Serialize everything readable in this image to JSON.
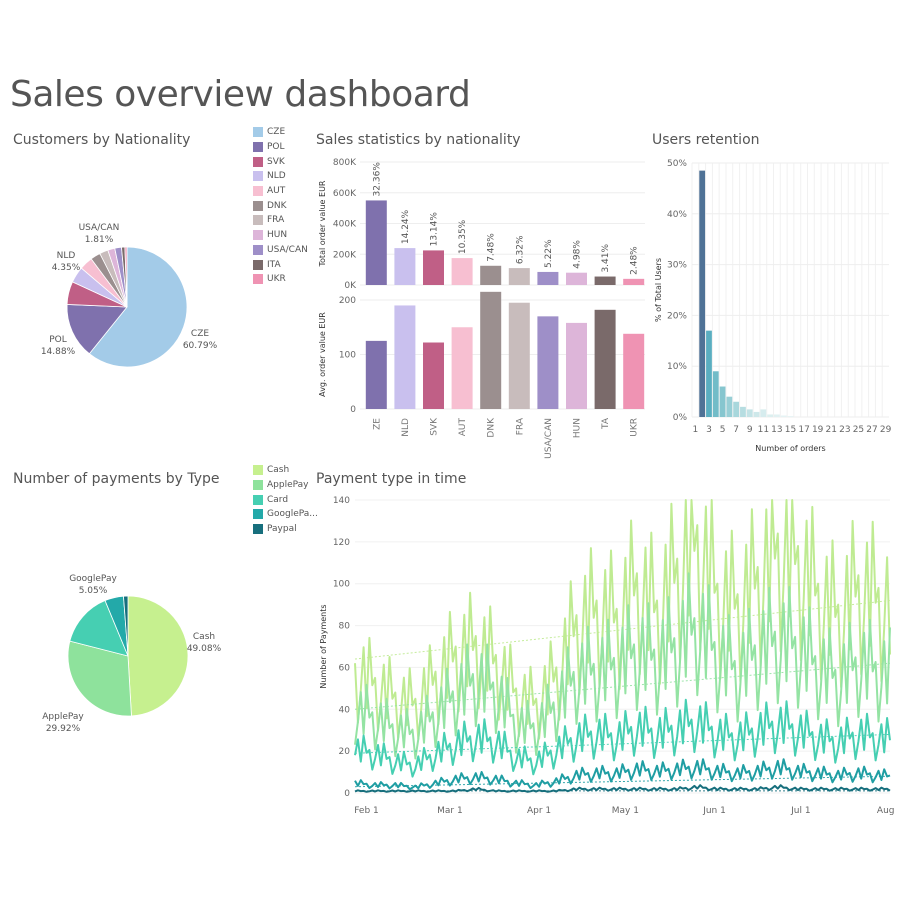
{
  "page": {
    "title": "Sales overview dashboard"
  },
  "chart_data": [
    {
      "id": "nationality_pie",
      "type": "pie",
      "title": "Customers by Nationality",
      "categories": [
        "CZE",
        "POL",
        "SVK",
        "NLD",
        "AUT",
        "DNK",
        "FRA",
        "HUN",
        "USA/CAN",
        "ITA",
        "UKR"
      ],
      "values": [
        60.79,
        14.88,
        6.2,
        4.35,
        3.6,
        2.7,
        2.3,
        1.9,
        1.81,
        0.9,
        0.56
      ],
      "colors": [
        "#a3cbe8",
        "#7f71ad",
        "#c05f86",
        "#c9c0ee",
        "#f7bfd1",
        "#9b8f8f",
        "#c8bcbc",
        "#ddb5d9",
        "#9e8fc8",
        "#7a6a6a",
        "#ef93b3"
      ],
      "labels": [
        {
          "name": "CZE",
          "pct": "60.79%"
        },
        {
          "name": "POL",
          "pct": "14.88%"
        },
        {
          "name": "NLD",
          "pct": "4.35%"
        },
        {
          "name": "USA/CAN",
          "pct": "1.81%"
        }
      ],
      "legend": [
        "CZE",
        "POL",
        "SVK",
        "NLD",
        "AUT",
        "DNK",
        "FRA",
        "HUN",
        "USA/CAN",
        "ITA",
        "UKR"
      ]
    },
    {
      "id": "sales_stats",
      "type": "bar",
      "title": "Sales statistics by nationality",
      "categories": [
        "CZE",
        "NLD",
        "SVK",
        "AUT",
        "DNK",
        "FRA",
        "USA/CAN",
        "HUN",
        "ITA",
        "UKR"
      ],
      "tick_labels": [
        "ZE",
        "NLD",
        "SVK",
        "AUT",
        "DNK",
        "FRA",
        "USA/CAN",
        "HUN",
        "TA",
        "UKR"
      ],
      "colors": [
        "#7f71ad",
        "#c9c0ee",
        "#c05f86",
        "#f7bfd1",
        "#9b8f8f",
        "#c8bcbc",
        "#9e8fc8",
        "#ddb5d9",
        "#7a6a6a",
        "#ef93b3"
      ],
      "series": [
        {
          "name": "Total order value EUR",
          "values": [
            550000,
            240000,
            225000,
            175000,
            125000,
            110000,
            85000,
            80000,
            55000,
            40000
          ],
          "data_labels": [
            "32.36%",
            "14.24%",
            "13.14%",
            "10.35%",
            "7.48%",
            "6.32%",
            "5.22%",
            "4.98%",
            "3.41%",
            "2.48%"
          ],
          "ylim": [
            0,
            800000
          ],
          "yticks": [
            {
              "v": 0,
              "t": "0K"
            },
            {
              "v": 200000,
              "t": "200K"
            },
            {
              "v": 400000,
              "t": "400K"
            },
            {
              "v": 600000,
              "t": "600K"
            },
            {
              "v": 800000,
              "t": "800K"
            }
          ]
        },
        {
          "name": "Avg. order value EUR",
          "values": [
            125,
            190,
            122,
            150,
            215,
            195,
            170,
            158,
            182,
            138
          ],
          "ylim": [
            0,
            200
          ],
          "yticks": [
            {
              "v": 0,
              "t": "0"
            },
            {
              "v": 100,
              "t": "100"
            },
            {
              "v": 200,
              "t": "200"
            }
          ]
        }
      ],
      "ylabel_top": "Total order value EUR",
      "ylabel_bottom": "Avg. order value EUR"
    },
    {
      "id": "retention",
      "type": "bar",
      "title": "Users retention",
      "xlabel": "Number of orders",
      "ylabel": "% of Total Users",
      "x": [
        1,
        2,
        3,
        4,
        5,
        6,
        7,
        8,
        9,
        10,
        11,
        12,
        13,
        14,
        15,
        16,
        17,
        18,
        19,
        20,
        21,
        22,
        23,
        24,
        25,
        26,
        27,
        28,
        29
      ],
      "values": [
        0,
        48.5,
        17,
        9,
        6,
        4,
        3,
        2,
        1.5,
        1,
        1.5,
        0.5,
        0.5,
        0.3,
        0.2,
        0,
        0,
        0,
        0,
        0,
        0,
        0,
        0,
        0,
        0,
        0,
        0,
        0,
        0
      ],
      "colors": [
        "#4f7296",
        "#4f7296",
        "#5aaec0",
        "#72bcc8",
        "#86c6cf",
        "#98cfd6",
        "#a8d7dc",
        "#b6dde1",
        "#c3e3e6",
        "#cee8ea",
        "#d6ecee",
        "#dcefef",
        "#e1f1f2",
        "#e5f3f4",
        "#e8f4f5"
      ],
      "xticks": [
        1,
        3,
        5,
        7,
        9,
        11,
        13,
        15,
        17,
        19,
        21,
        23,
        25,
        27,
        29
      ],
      "ylim": [
        0,
        50
      ],
      "yticks": [
        {
          "v": 0,
          "t": "0%"
        },
        {
          "v": 10,
          "t": "10%"
        },
        {
          "v": 20,
          "t": "20%"
        },
        {
          "v": 30,
          "t": "30%"
        },
        {
          "v": 40,
          "t": "40%"
        },
        {
          "v": 50,
          "t": "50%"
        }
      ]
    },
    {
      "id": "payments_pie",
      "type": "pie",
      "title": "Number of payments by Type",
      "categories": [
        "Cash",
        "ApplePay",
        "Card",
        "GooglePay",
        "Paypal"
      ],
      "values": [
        49.08,
        29.92,
        14.75,
        5.05,
        1.2
      ],
      "colors": [
        "#c6f08f",
        "#8ee29c",
        "#46cfb2",
        "#23a9a9",
        "#176f7d"
      ],
      "labels": [
        {
          "name": "Cash",
          "pct": "49.08%"
        },
        {
          "name": "ApplePay",
          "pct": "29.92%"
        },
        {
          "name": "GooglePay",
          "pct": "5.05%"
        }
      ],
      "legend": [
        "Cash",
        "ApplePay",
        "Card",
        "GooglePa...",
        "Paypal"
      ]
    },
    {
      "id": "payment_time",
      "type": "line",
      "title": "Payment type in time",
      "ylabel": "Number of Payments",
      "x_range": [
        "2020-01-28",
        "2020-08-01"
      ],
      "xticks": [
        "Feb 1",
        "Mar 1",
        "Apr 1",
        "May 1",
        "Jun 1",
        "Jul 1",
        "Aug 1"
      ],
      "ylim": [
        0,
        140
      ],
      "yticks": [
        0,
        20,
        40,
        60,
        80,
        100,
        120,
        140
      ],
      "series": [
        {
          "name": "Cash",
          "color": "#bfeb92",
          "trend": [
            64,
            92
          ],
          "weekly": [
            62,
            55,
            48,
            45,
            58,
            70,
            75,
            66,
            50,
            45,
            60,
            85,
            92,
            88,
            105,
            92,
            112,
            128,
            100,
            95,
            108,
            124,
            118,
            100,
            90,
            104,
            98,
            92
          ]
        },
        {
          "name": "ApplePay",
          "color": "#94e3a3",
          "trend": [
            40,
            62
          ],
          "weekly": [
            42,
            38,
            32,
            30,
            40,
            50,
            58,
            52,
            35,
            33,
            45,
            60,
            62,
            65,
            72,
            68,
            75,
            85,
            70,
            62,
            72,
            78,
            74,
            64,
            58,
            66,
            62,
            60
          ]
        },
        {
          "name": "Card",
          "color": "#46cfb2",
          "trend": [
            19,
            28
          ],
          "weekly": [
            22,
            20,
            16,
            14,
            20,
            25,
            28,
            26,
            18,
            16,
            22,
            28,
            30,
            28,
            33,
            30,
            33,
            36,
            30,
            28,
            32,
            35,
            32,
            28,
            26,
            30,
            28,
            27
          ]
        },
        {
          "name": "GooglePay",
          "color": "#1f9ea3",
          "trend": [
            3,
            8
          ],
          "weekly": [
            5,
            4,
            4,
            3,
            5,
            7,
            8,
            7,
            5,
            4,
            6,
            9,
            10,
            10,
            12,
            11,
            12,
            13,
            11,
            10,
            11,
            13,
            11,
            10,
            9,
            10,
            9,
            8
          ]
        },
        {
          "name": "Paypal",
          "color": "#176f7d",
          "trend": [
            1,
            1
          ],
          "weekly": [
            1,
            1,
            1,
            1,
            1,
            1,
            2,
            1,
            1,
            1,
            1,
            2,
            2,
            2,
            2,
            2,
            2,
            3,
            2,
            2,
            2,
            3,
            2,
            2,
            2,
            2,
            2,
            2
          ]
        }
      ]
    }
  ]
}
